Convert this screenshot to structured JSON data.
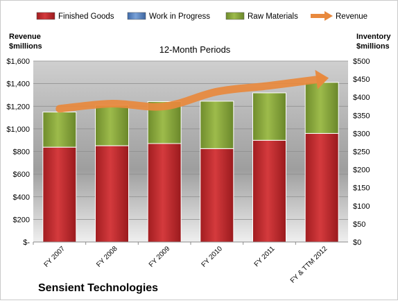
{
  "chart_data": {
    "type": "bar",
    "stacked": true,
    "title": "12-Month Periods",
    "company": "Sensient Technologies",
    "left_axis_label": [
      "Revenue",
      "$millions"
    ],
    "right_axis_label": [
      "Inventory",
      "$millions"
    ],
    "categories": [
      "FY 2007",
      "FY 2008",
      "FY 2009",
      "FY 2010",
      "FY 2011",
      "FY & TTM 2012"
    ],
    "series": [
      {
        "name": "Finished Goods",
        "axis": "right",
        "color": "#c0262b",
        "values": [
          262,
          266,
          272,
          258,
          281,
          300
        ]
      },
      {
        "name": "Work in Progress",
        "axis": "right",
        "color": "#5b86c4",
        "values": [
          0,
          0,
          0,
          0,
          0,
          0
        ]
      },
      {
        "name": "Raw Materials",
        "axis": "right",
        "color": "#8aa83c",
        "values": [
          97,
          112,
          116,
          131,
          131,
          141
        ]
      },
      {
        "name": "Revenue",
        "axis": "left",
        "type": "line",
        "color": "#e8893d",
        "values": [
          1178,
          1223,
          1199,
          1329,
          1382,
          1442
        ]
      }
    ],
    "left_axis": {
      "min": 0,
      "max": 1600,
      "step": 200,
      "ticks": [
        "$-",
        "$200",
        "$400",
        "$600",
        "$800",
        "$1,000",
        "$1,200",
        "$1,400",
        "$1,600"
      ]
    },
    "right_axis": {
      "min": 0,
      "max": 500,
      "step": 50,
      "ticks": [
        "$0",
        "$50",
        "$100",
        "$150",
        "$200",
        "$250",
        "$300",
        "$350",
        "$400",
        "$450",
        "$500"
      ]
    },
    "grid": true,
    "legend_position": "top"
  }
}
